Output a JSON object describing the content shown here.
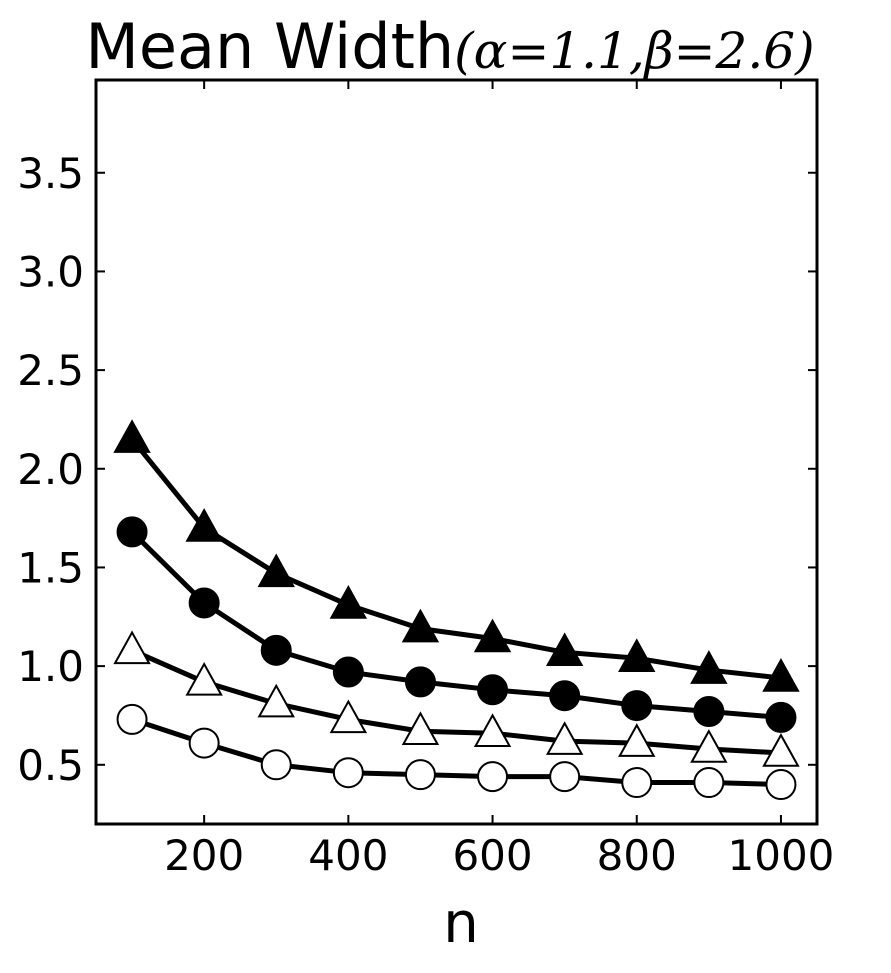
{
  "chart_data": {
    "type": "line",
    "title": {
      "text": "Mean Width",
      "params": "(α=1.1,β=2.6)"
    },
    "xlabel": "n",
    "ylabel": "",
    "xlim": [
      50,
      1050
    ],
    "ylim": [
      0.2,
      3.97
    ],
    "x": [
      100,
      200,
      300,
      400,
      500,
      600,
      700,
      800,
      900,
      1000
    ],
    "xticks": [
      200,
      400,
      600,
      800,
      1000
    ],
    "xtick_labels": [
      "200",
      "400",
      "600",
      "800",
      "1000"
    ],
    "yticks": [
      0.5,
      1.0,
      1.5,
      2.0,
      2.5,
      3.0,
      3.5
    ],
    "ytick_labels": [
      "0.5",
      "1.0",
      "1.5",
      "2.0",
      "2.5",
      "3.0",
      "3.5"
    ],
    "grid": false,
    "series": [
      {
        "marker": "filled-triangle",
        "color": "#000000",
        "values": [
          2.15,
          1.7,
          1.47,
          1.31,
          1.19,
          1.14,
          1.07,
          1.04,
          0.98,
          0.94
        ]
      },
      {
        "marker": "filled-circle",
        "color": "#000000",
        "values": [
          1.68,
          1.32,
          1.08,
          0.97,
          0.92,
          0.88,
          0.85,
          0.8,
          0.77,
          0.74
        ]
      },
      {
        "marker": "open-triangle",
        "color": "#000000",
        "values": [
          1.08,
          0.92,
          0.81,
          0.73,
          0.67,
          0.66,
          0.62,
          0.61,
          0.58,
          0.56
        ]
      },
      {
        "marker": "open-circle",
        "color": "#000000",
        "values": [
          0.73,
          0.61,
          0.5,
          0.46,
          0.45,
          0.44,
          0.44,
          0.41,
          0.41,
          0.4
        ]
      }
    ]
  }
}
